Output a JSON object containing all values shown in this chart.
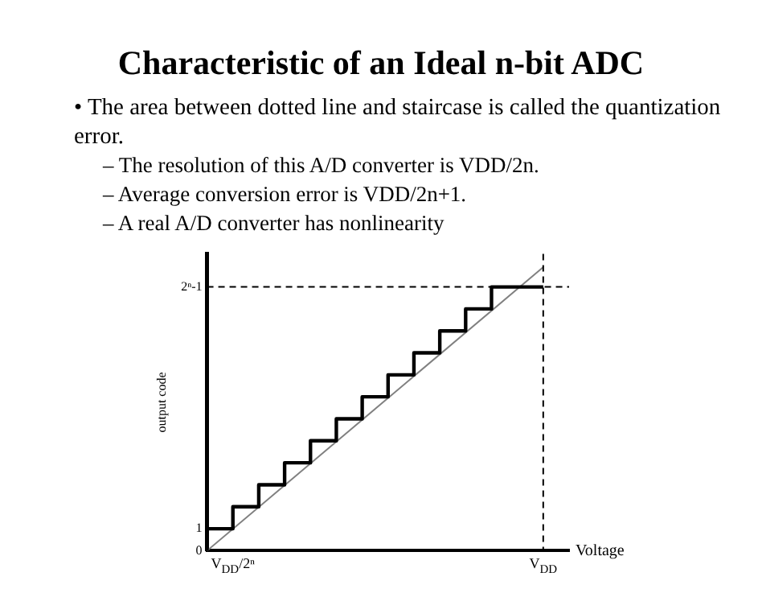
{
  "chart_data": {
    "type": "step",
    "title": "Characteristic of an Ideal n-bit ADC",
    "annotations": [
      "• The area between dotted line and staircase is called the quantization error.",
      "– The resolution of this A/D converter is VDD/2n.",
      "– Average conversion error is VDD/2n+1.",
      "– A real A/D converter has nonlinearity"
    ],
    "xlabel": "Voltage",
    "ylabel": "output code",
    "categories": [
      null,
      "V$_{DD}$/2ⁿ",
      null,
      null,
      null,
      null,
      null,
      null,
      null,
      null,
      null,
      null,
      null,
      "V$_{DD}$",
      null
    ],
    "ylim": [
      0,
      13.5
    ],
    "yticks": [
      0,
      1,
      {
        "value": 12,
        "label": "2ⁿ-1"
      }
    ],
    "grid": false,
    "legend": false,
    "marker": "none",
    "ref_lines": [
      {
        "axis": "y",
        "value": 12,
        "color": "#000000",
        "line_style": "dashed"
      },
      {
        "axis": "x",
        "value": "V$_{DD}$",
        "color": "#000000",
        "line_style": "dashed"
      }
    ],
    "series": [
      {
        "color": "#000000",
        "values": [
          0,
          1,
          2,
          3,
          4,
          5,
          6,
          7,
          8,
          9,
          10,
          11,
          12,
          12,
          null
        ]
      },
      {
        "type": "line",
        "color": "#808080",
        "values": [
          0,
          null,
          null,
          null,
          null,
          null,
          null,
          null,
          null,
          null,
          null,
          null,
          null,
          12.9,
          null
        ]
      }
    ]
  }
}
